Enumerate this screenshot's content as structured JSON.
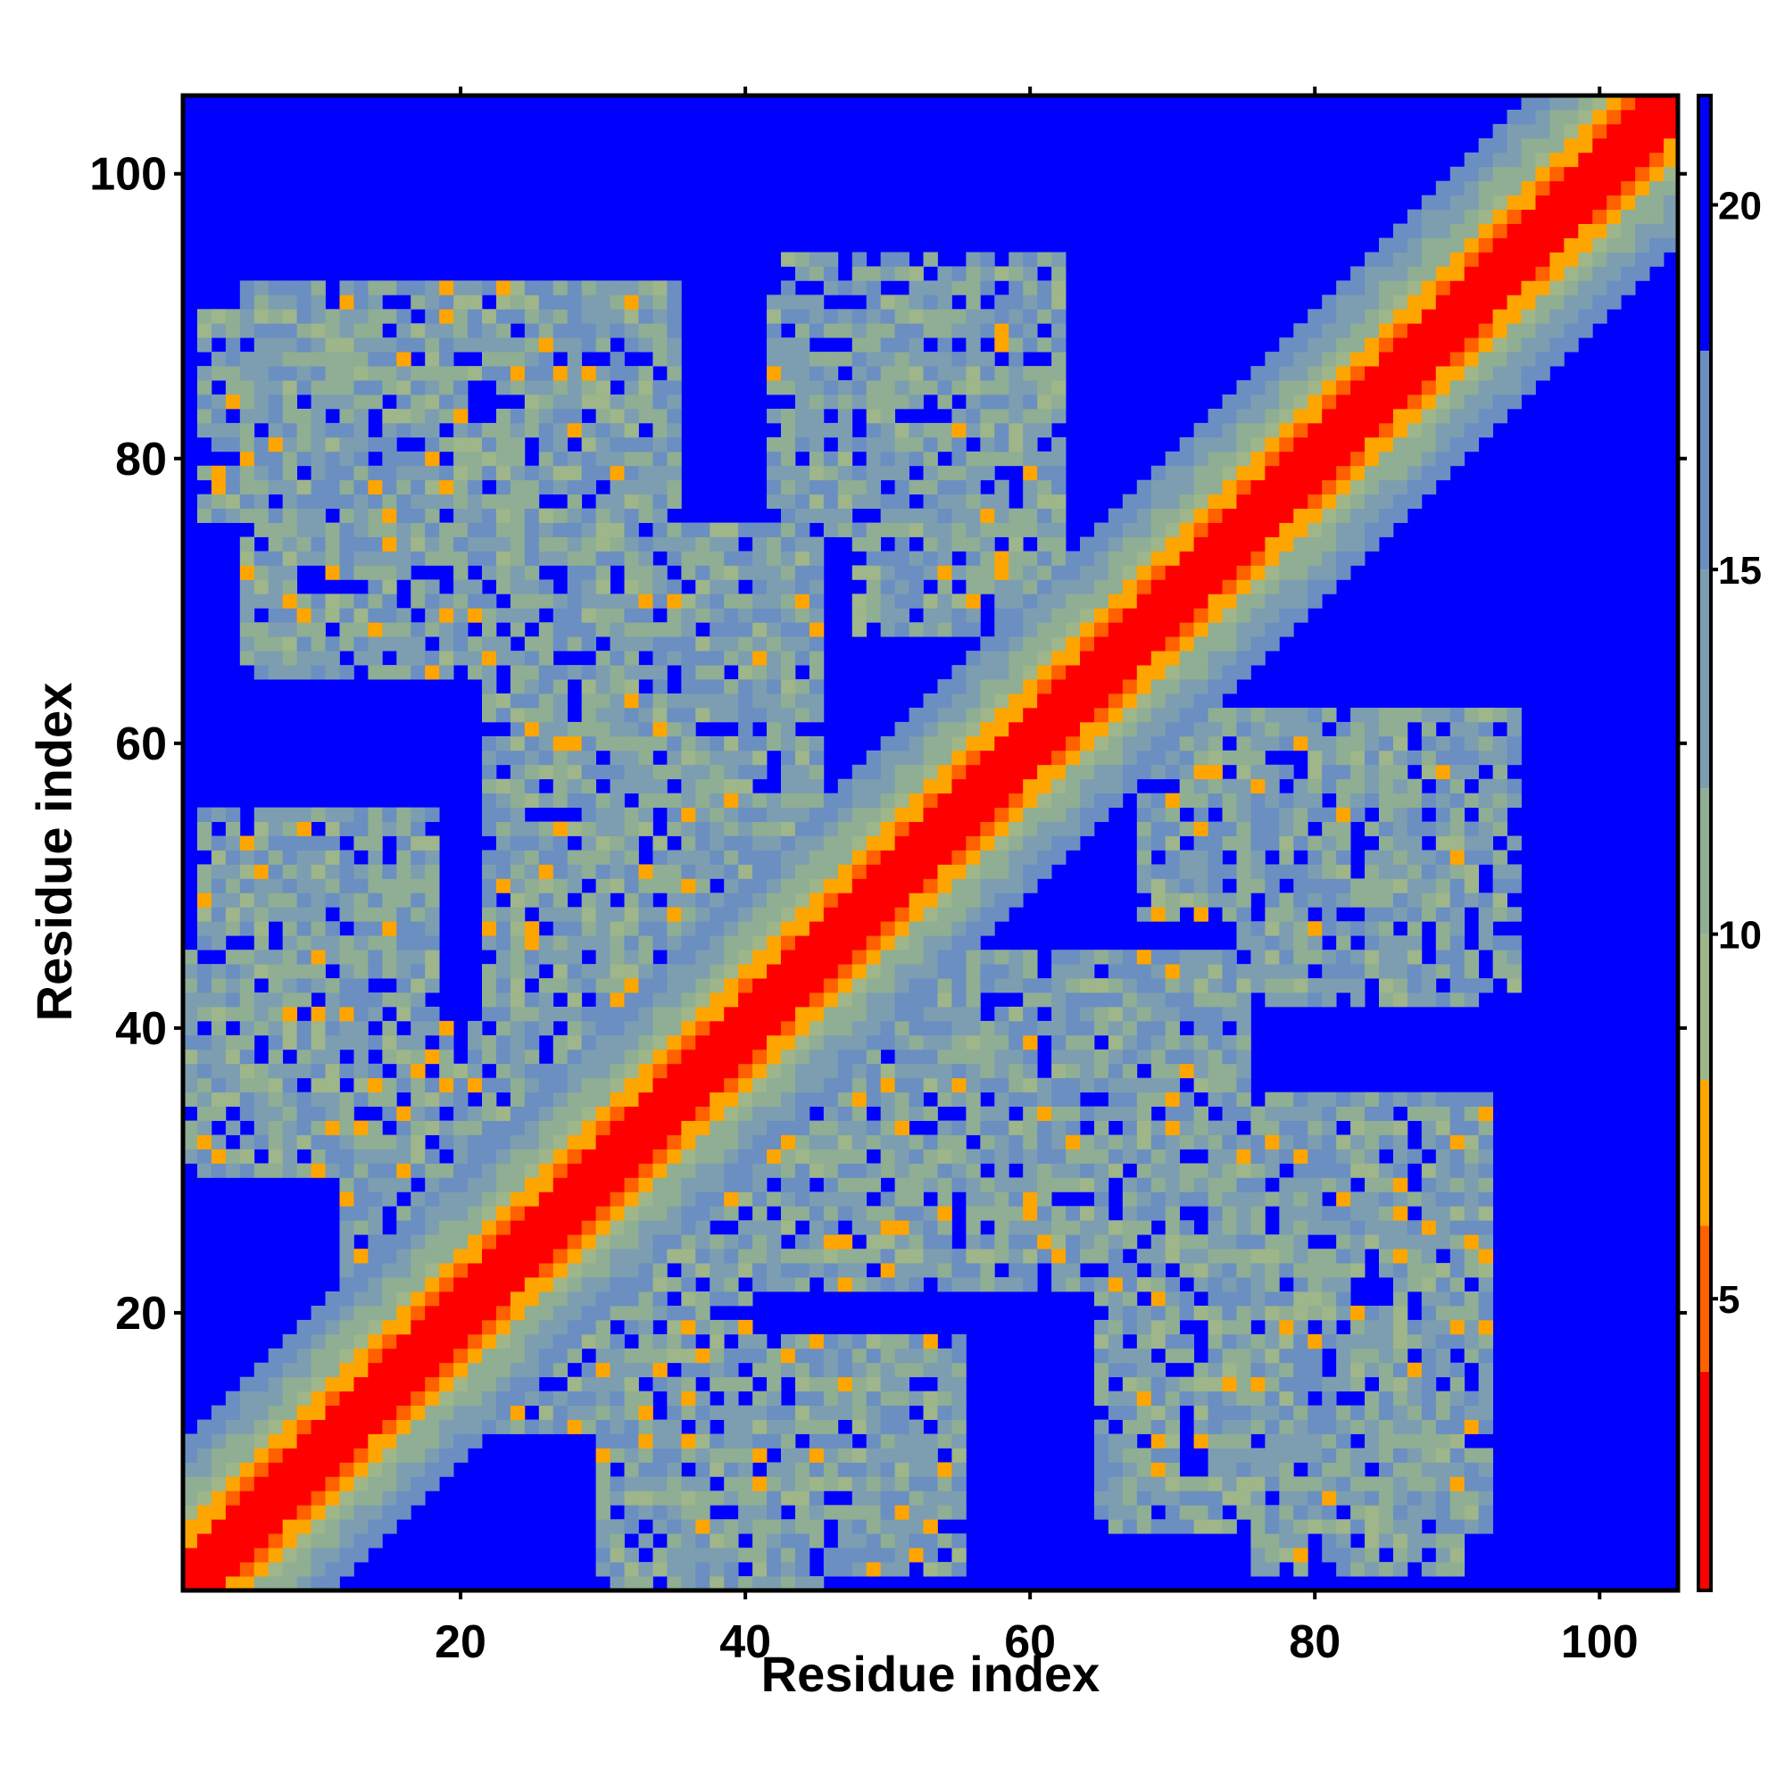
{
  "chart_data": {
    "type": "heatmap",
    "title": "",
    "xlabel": "Residue index",
    "ylabel": "Residue index",
    "n_residues": 105,
    "xlim": [
      1,
      105
    ],
    "ylim": [
      1,
      105
    ],
    "x_ticks": [
      20,
      40,
      60,
      80,
      100
    ],
    "y_ticks": [
      20,
      40,
      60,
      80,
      100
    ],
    "colorbar": {
      "range": [
        1,
        21.5
      ],
      "ticks": [
        5,
        10,
        15,
        20
      ],
      "colors": [
        {
          "max": 4,
          "color": "#ff0000"
        },
        {
          "max": 6,
          "color": "#ff6000"
        },
        {
          "max": 8,
          "color": "#ffa500"
        },
        {
          "max": 10,
          "color": "#9fb58a"
        },
        {
          "max": 12,
          "color": "#8fae93"
        },
        {
          "max": 15,
          "color": "#7c9eb0"
        },
        {
          "max": 18,
          "color": "#6a8fc0"
        },
        {
          "max": 21.5,
          "color": "#0000ff"
        }
      ]
    },
    "matrix_description_values": {
      "diagonal_value": 1,
      "background_value": 21.5
    },
    "contact_blocks": [
      {
        "i": [
          2,
          18
        ],
        "j": [
          76,
          90
        ],
        "mean_distance": 14
      },
      {
        "i": [
          5,
          33
        ],
        "j": [
          70,
          80
        ],
        "mean_distance": 13
      },
      {
        "i": [
          25,
          45
        ],
        "j": [
          55,
          75
        ],
        "mean_distance": 13
      },
      {
        "i": [
          42,
          62
        ],
        "j": [
          75,
          94
        ],
        "mean_distance": 13
      },
      {
        "i": [
          1,
          16
        ],
        "j": [
          30,
          46
        ],
        "mean_distance": 13
      },
      {
        "i": [
          30,
          52
        ],
        "j": [
          42,
          56
        ],
        "mean_distance": 12
      },
      {
        "i": [
          68,
          92
        ],
        "j": [
          48,
          62
        ],
        "mean_distance": 13
      },
      {
        "i": [
          28,
          65
        ],
        "j": [
          22,
          40
        ],
        "mean_distance": 13
      },
      {
        "i": [
          65,
          92
        ],
        "j": [
          5,
          35
        ],
        "mean_distance": 13
      },
      {
        "i": [
          30,
          55
        ],
        "j": [
          2,
          18
        ],
        "mean_distance": 13
      },
      {
        "i": [
          20,
          40
        ],
        "j": [
          12,
          25
        ],
        "mean_distance": 12
      }
    ]
  }
}
